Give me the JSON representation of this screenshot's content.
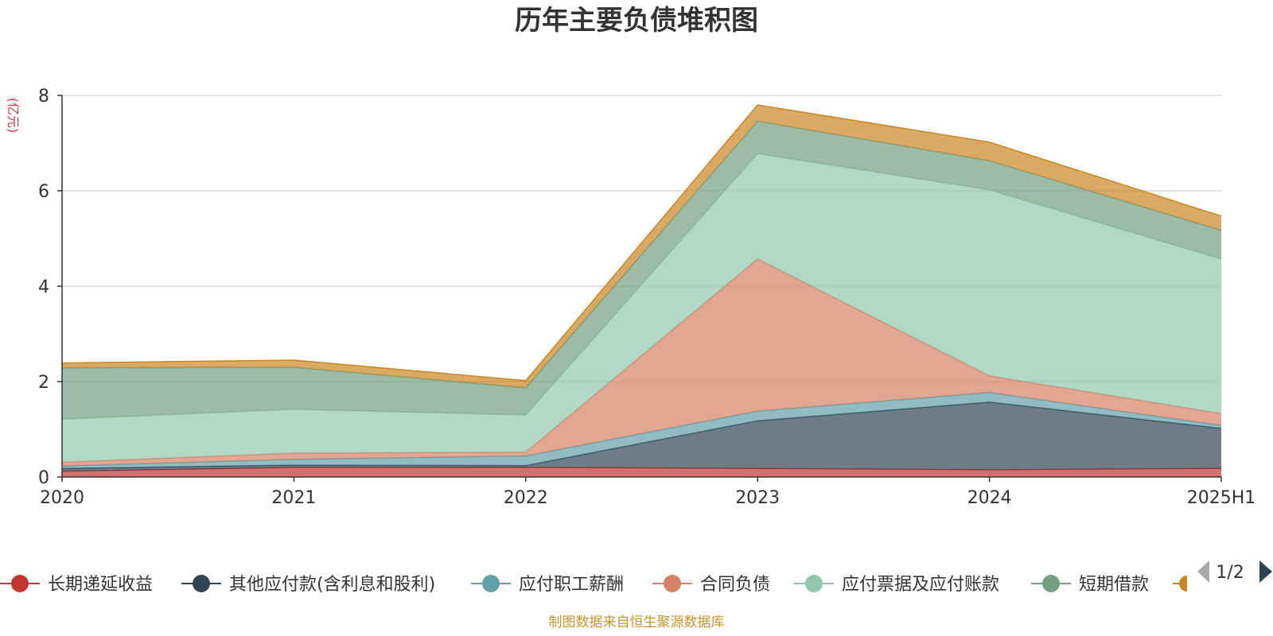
{
  "chart_data": {
    "type": "area",
    "stacked": true,
    "title": "历年主要负债堆积图",
    "unit_label": "(亿元)",
    "x": [
      "2020",
      "2021",
      "2022",
      "2023",
      "2024",
      "2025H1"
    ],
    "y_ticks": [
      "0",
      "2",
      "4",
      "6",
      "8"
    ],
    "ylim": [
      0,
      8
    ],
    "grid": true,
    "series": [
      {
        "name": "长期递延收益",
        "color": "#c23531",
        "values": [
          0.12,
          0.2,
          0.2,
          0.18,
          0.15,
          0.18
        ]
      },
      {
        "name": "其他应付款(含利息和股利)",
        "color": "#2f4554",
        "values": [
          0.06,
          0.05,
          0.04,
          1.0,
          1.42,
          0.84
        ]
      },
      {
        "name": "应付职工薪酬",
        "color": "#61a0a8",
        "values": [
          0.05,
          0.12,
          0.2,
          0.2,
          0.2,
          0.06
        ]
      },
      {
        "name": "合同负债",
        "color": "#d48265",
        "values": [
          0.08,
          0.13,
          0.08,
          3.19,
          0.35,
          0.25
        ]
      },
      {
        "name": "应付票据及应付账款",
        "color": "#91c7ae",
        "values": [
          0.9,
          0.92,
          0.78,
          2.21,
          3.9,
          3.24
        ]
      },
      {
        "name": "短期借款",
        "color": "#749f83",
        "values": [
          1.08,
          0.88,
          0.57,
          0.68,
          0.61,
          0.6
        ]
      },
      {
        "name": "",
        "color": "#ca8622",
        "values": [
          0.1,
          0.15,
          0.15,
          0.34,
          0.39,
          0.3
        ]
      }
    ],
    "legend": {
      "position": "bottom",
      "items": [
        "长期递延收益",
        "其他应付款(含利息和股利)",
        "应付职工薪酬",
        "合同负债",
        "应付票据及应付账款",
        "短期借款"
      ],
      "page": "1/2"
    },
    "source": "制图数据来自恒生聚源数据库"
  }
}
